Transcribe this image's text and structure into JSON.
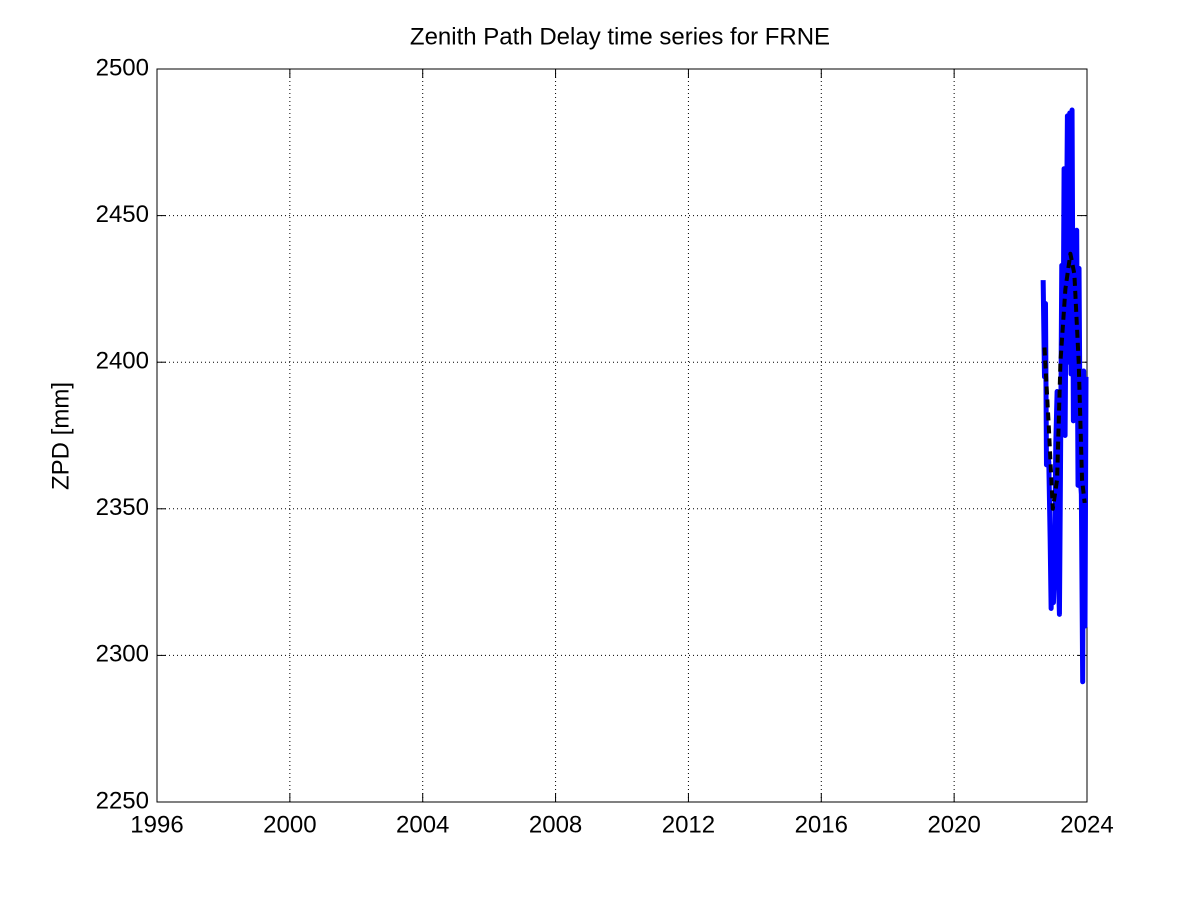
{
  "chart_data": {
    "type": "line",
    "title": "Zenith Path Delay time series for FRNE",
    "y_label": "ZPD [mm]",
    "xlim": [
      1996,
      2024
    ],
    "xticks": [
      1996,
      2000,
      2004,
      2008,
      2012,
      2016,
      2020,
      2024
    ],
    "ylim": [
      2250,
      2500
    ],
    "yticks": [
      2250,
      2300,
      2350,
      2400,
      2450,
      2500
    ],
    "grid": true,
    "series": [
      {
        "color": "#0000ff",
        "style": "solid",
        "x": [
          2022.68,
          2022.72,
          2022.75,
          2022.78,
          2022.82,
          2022.85,
          2022.89,
          2022.92,
          2022.96,
          2022.99,
          2023.03,
          2023.06,
          2023.1,
          2023.13,
          2023.17,
          2023.2,
          2023.24,
          2023.27,
          2023.31,
          2023.34,
          2023.38,
          2023.41,
          2023.45,
          2023.48,
          2023.52,
          2023.55,
          2023.59,
          2023.62,
          2023.66,
          2023.69,
          2023.73,
          2023.76,
          2023.8,
          2023.83,
          2023.87,
          2023.9,
          2023.94,
          2023.97
        ],
        "values": [
          2428,
          2395,
          2420,
          2365,
          2368,
          2366,
          2340,
          2316,
          2335,
          2318,
          2340,
          2372,
          2390,
          2330,
          2314,
          2360,
          2433,
          2380,
          2466,
          2375,
          2440,
          2484,
          2400,
          2485,
          2396,
          2486,
          2380,
          2440,
          2386,
          2445,
          2358,
          2432,
          2360,
          2355,
          2291,
          2397,
          2310,
          2395
        ]
      },
      {
        "color": "#000000",
        "style": "dashed",
        "x": [
          2022.72,
          2022.85,
          2022.97,
          2023.1,
          2023.2,
          2023.35,
          2023.5,
          2023.62,
          2023.75,
          2023.85,
          2023.93
        ],
        "values": [
          2405,
          2378,
          2350,
          2360,
          2400,
          2425,
          2437,
          2430,
          2400,
          2360,
          2352
        ]
      }
    ]
  }
}
